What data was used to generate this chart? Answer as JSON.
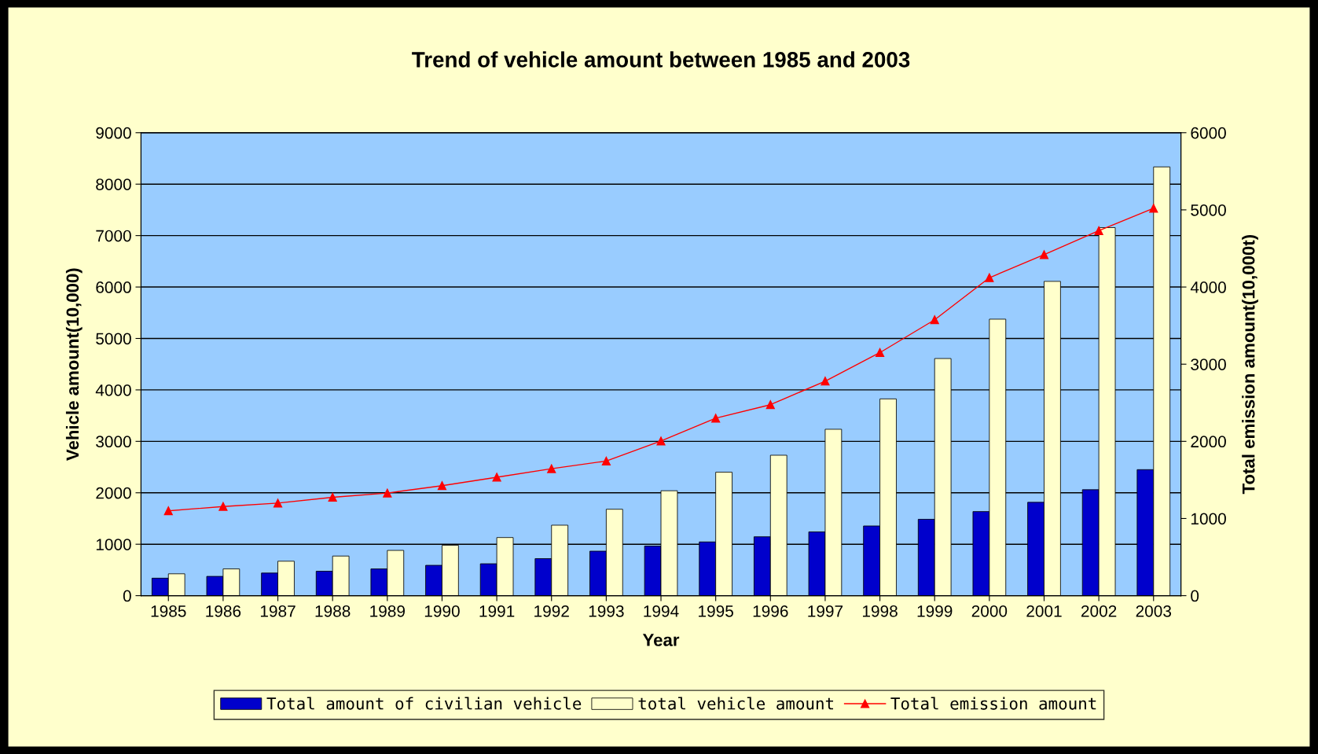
{
  "chart_data": {
    "type": "bar",
    "title": "Trend of vehicle amount between 1985 and 2003",
    "xlabel": "Year",
    "ylabel": "Vehicle amount(10,000)",
    "y2label": "Total emission amount(10,000t)",
    "categories": [
      "1985",
      "1986",
      "1987",
      "1988",
      "1989",
      "1990",
      "1991",
      "1992",
      "1993",
      "1994",
      "1995",
      "1996",
      "1997",
      "1998",
      "1999",
      "2000",
      "2001",
      "2002",
      "2003"
    ],
    "series": [
      {
        "name": "Total amount of civilian vehicle",
        "color": "#0000cc",
        "values": [
          340,
          375,
          440,
          475,
          520,
          590,
          620,
          720,
          865,
          965,
          1045,
          1145,
          1240,
          1355,
          1485,
          1635,
          1815,
          2060,
          2450
        ]
      },
      {
        "name": "total vehicle amount",
        "color": "#ffffcc",
        "values": [
          425,
          520,
          670,
          770,
          880,
          980,
          1130,
          1370,
          1680,
          2040,
          2400,
          2730,
          3235,
          3825,
          4610,
          5375,
          6110,
          7155,
          8335
        ]
      },
      {
        "name": "Total emission amount",
        "type": "line",
        "axis": "y2",
        "color": "#ff0000",
        "marker": "triangle",
        "values": [
          1100,
          1155,
          1200,
          1275,
          1330,
          1425,
          1535,
          1645,
          1745,
          2005,
          2300,
          2475,
          2780,
          3150,
          3575,
          4120,
          4420,
          4730,
          5020
        ]
      }
    ],
    "ylim": [
      0,
      9000
    ],
    "yticks": [
      0,
      1000,
      2000,
      3000,
      4000,
      5000,
      6000,
      7000,
      8000,
      9000
    ],
    "y2lim": [
      0,
      6000
    ],
    "y2ticks": [
      0,
      1000,
      2000,
      3000,
      4000,
      5000,
      6000
    ],
    "grid": "y",
    "legend": "bottom"
  }
}
